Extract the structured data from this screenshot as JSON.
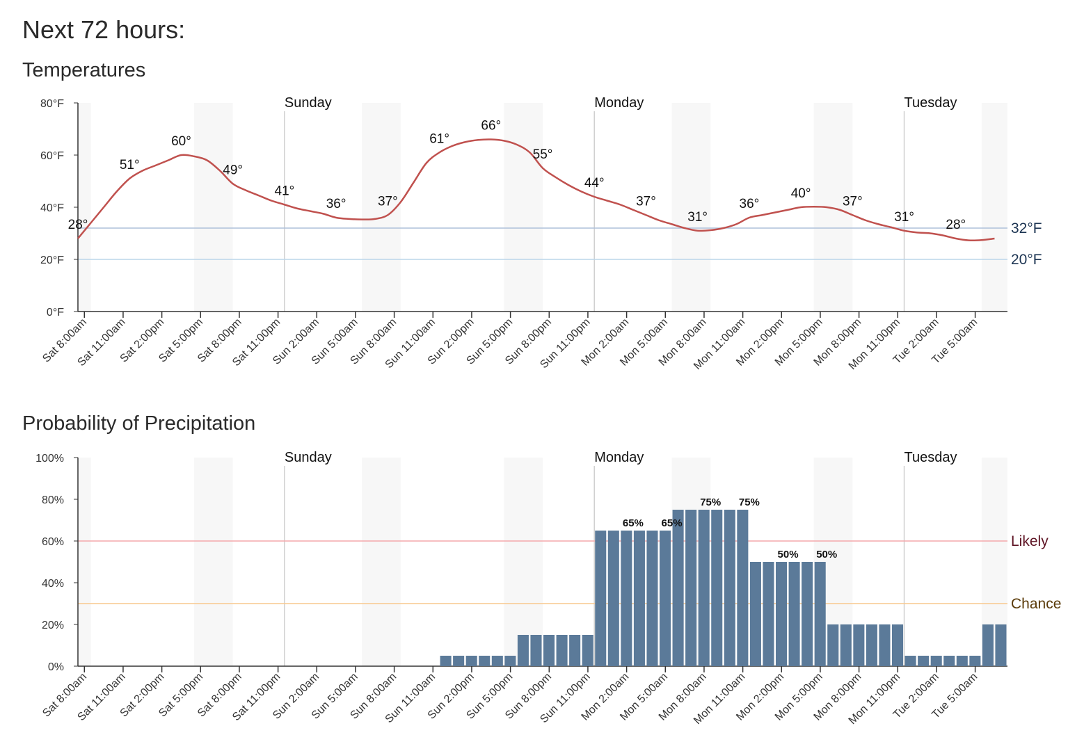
{
  "header": {
    "title": "Next 72 hours:"
  },
  "chart_data": [
    {
      "type": "line",
      "title": "Temperatures",
      "xlim": [
        0,
        72
      ],
      "xticks": [
        {
          "value": 0.5,
          "label": "Sat 8:00am"
        },
        {
          "value": 3.5,
          "label": "Sat 11:00am"
        },
        {
          "value": 6.5,
          "label": "Sat 2:00pm"
        },
        {
          "value": 9.5,
          "label": "Sat 5:00pm"
        },
        {
          "value": 12.5,
          "label": "Sat 8:00pm"
        },
        {
          "value": 15.5,
          "label": "Sat 11:00pm"
        },
        {
          "value": 18.5,
          "label": "Sun 2:00am"
        },
        {
          "value": 21.5,
          "label": "Sun 5:00am"
        },
        {
          "value": 24.5,
          "label": "Sun 8:00am"
        },
        {
          "value": 27.5,
          "label": "Sun 11:00am"
        },
        {
          "value": 30.5,
          "label": "Sun 2:00pm"
        },
        {
          "value": 33.5,
          "label": "Sun 5:00pm"
        },
        {
          "value": 36.5,
          "label": "Sun 8:00pm"
        },
        {
          "value": 39.5,
          "label": "Sun 11:00pm"
        },
        {
          "value": 42.5,
          "label": "Mon 2:00am"
        },
        {
          "value": 45.5,
          "label": "Mon 5:00am"
        },
        {
          "value": 48.5,
          "label": "Mon 8:00am"
        },
        {
          "value": 51.5,
          "label": "Mon 11:00am"
        },
        {
          "value": 54.5,
          "label": "Mon 2:00pm"
        },
        {
          "value": 57.5,
          "label": "Mon 5:00pm"
        },
        {
          "value": 60.5,
          "label": "Mon 8:00pm"
        },
        {
          "value": 63.5,
          "label": "Mon 11:00pm"
        },
        {
          "value": 66.5,
          "label": "Tue 2:00am"
        },
        {
          "value": 69.5,
          "label": "Tue 5:00am"
        }
      ],
      "day_markers": [
        {
          "value": 16,
          "label": "Sunday"
        },
        {
          "value": 40,
          "label": "Monday"
        },
        {
          "value": 64,
          "label": "Tuesday"
        }
      ],
      "ylim": [
        0,
        80
      ],
      "yticks": [
        {
          "value": 0,
          "label": "0°F"
        },
        {
          "value": 20,
          "label": "20°F"
        },
        {
          "value": 40,
          "label": "40°F"
        },
        {
          "value": 60,
          "label": "60°F"
        },
        {
          "value": 80,
          "label": "80°F"
        }
      ],
      "reference_lines": [
        {
          "value": 32,
          "label": "32°F",
          "color": "#aec0da",
          "label_color": "#1d3553"
        },
        {
          "value": 20,
          "label": "20°F",
          "color": "#bcd6ea",
          "label_color": "#1d3553"
        }
      ],
      "series": [
        {
          "color": "#c0514e",
          "values": [
            28,
            34,
            40,
            46,
            51,
            54,
            56,
            58,
            60,
            59.5,
            58,
            54,
            49,
            46.5,
            44.5,
            42.5,
            41,
            39.5,
            38.5,
            37.5,
            36,
            35.5,
            35.3,
            35.5,
            37,
            42,
            49.5,
            57,
            61,
            63.5,
            65,
            65.8,
            66,
            65.5,
            64,
            61,
            55,
            51.5,
            48.5,
            46,
            44,
            42.5,
            41,
            39,
            37,
            35,
            33.5,
            32,
            31,
            31.2,
            32,
            33.5,
            36,
            37,
            38,
            39,
            40,
            40.2,
            40,
            39,
            37,
            35,
            33.5,
            32.3,
            31,
            30.3,
            30,
            29.2,
            28,
            27.3,
            27.4,
            28
          ],
          "value_labels": [
            "28°",
            null,
            null,
            null,
            "51°",
            null,
            null,
            null,
            "60°",
            null,
            null,
            null,
            "49°",
            null,
            null,
            null,
            "41°",
            null,
            null,
            null,
            "36°",
            null,
            null,
            null,
            "37°",
            null,
            null,
            null,
            "61°",
            null,
            null,
            null,
            "66°",
            null,
            null,
            null,
            "55°",
            null,
            null,
            null,
            "44°",
            null,
            null,
            null,
            "37°",
            null,
            null,
            null,
            "31°",
            null,
            null,
            null,
            "36°",
            null,
            null,
            null,
            "40°",
            null,
            null,
            null,
            "37°",
            null,
            null,
            null,
            "31°",
            null,
            null,
            null,
            "28°",
            null,
            null,
            null
          ]
        }
      ]
    },
    {
      "type": "bar",
      "title": "Probability of Precipitation",
      "xlim": [
        0,
        72
      ],
      "xticks": [
        {
          "value": 0.5,
          "label": "Sat 8:00am"
        },
        {
          "value": 3.5,
          "label": "Sat 11:00am"
        },
        {
          "value": 6.5,
          "label": "Sat 2:00pm"
        },
        {
          "value": 9.5,
          "label": "Sat 5:00pm"
        },
        {
          "value": 12.5,
          "label": "Sat 8:00pm"
        },
        {
          "value": 15.5,
          "label": "Sat 11:00pm"
        },
        {
          "value": 18.5,
          "label": "Sun 2:00am"
        },
        {
          "value": 21.5,
          "label": "Sun 5:00am"
        },
        {
          "value": 24.5,
          "label": "Sun 8:00am"
        },
        {
          "value": 27.5,
          "label": "Sun 11:00am"
        },
        {
          "value": 30.5,
          "label": "Sun 2:00pm"
        },
        {
          "value": 33.5,
          "label": "Sun 5:00pm"
        },
        {
          "value": 36.5,
          "label": "Sun 8:00pm"
        },
        {
          "value": 39.5,
          "label": "Sun 11:00pm"
        },
        {
          "value": 42.5,
          "label": "Mon 2:00am"
        },
        {
          "value": 45.5,
          "label": "Mon 5:00am"
        },
        {
          "value": 48.5,
          "label": "Mon 8:00am"
        },
        {
          "value": 51.5,
          "label": "Mon 11:00am"
        },
        {
          "value": 54.5,
          "label": "Mon 2:00pm"
        },
        {
          "value": 57.5,
          "label": "Mon 5:00pm"
        },
        {
          "value": 60.5,
          "label": "Mon 8:00pm"
        },
        {
          "value": 63.5,
          "label": "Mon 11:00pm"
        },
        {
          "value": 66.5,
          "label": "Tue 2:00am"
        },
        {
          "value": 69.5,
          "label": "Tue 5:00am"
        }
      ],
      "day_markers": [
        {
          "value": 16,
          "label": "Sunday"
        },
        {
          "value": 40,
          "label": "Monday"
        },
        {
          "value": 64,
          "label": "Tuesday"
        }
      ],
      "ylim": [
        0,
        100
      ],
      "yticks": [
        {
          "value": 0,
          "label": "0%"
        },
        {
          "value": 20,
          "label": "20%"
        },
        {
          "value": 40,
          "label": "40%"
        },
        {
          "value": 60,
          "label": "60%"
        },
        {
          "value": 80,
          "label": "80%"
        },
        {
          "value": 100,
          "label": "100%"
        }
      ],
      "reference_lines": [
        {
          "value": 60,
          "label": "Likely",
          "color": "#f4a9ab",
          "label_color": "#5e1424"
        },
        {
          "value": 30,
          "label": "Chance",
          "color": "#f9c98e",
          "label_color": "#5a3a08"
        }
      ],
      "color": "#5b7a99",
      "values": [
        0,
        0,
        0,
        0,
        0,
        0,
        0,
        0,
        0,
        0,
        0,
        0,
        0,
        0,
        0,
        0,
        0,
        0,
        0,
        0,
        0,
        0,
        0,
        0,
        0,
        0,
        0,
        0,
        5,
        5,
        5,
        5,
        5,
        5,
        15,
        15,
        15,
        15,
        15,
        15,
        65,
        65,
        65,
        65,
        65,
        65,
        75,
        75,
        75,
        75,
        75,
        75,
        50,
        50,
        50,
        50,
        50,
        50,
        20,
        20,
        20,
        20,
        20,
        20,
        5,
        5,
        5,
        5,
        5,
        5,
        20,
        20
      ],
      "value_labels": [
        null,
        null,
        null,
        null,
        null,
        null,
        null,
        null,
        null,
        null,
        null,
        null,
        null,
        null,
        null,
        null,
        null,
        null,
        null,
        null,
        null,
        null,
        null,
        null,
        null,
        null,
        null,
        null,
        null,
        null,
        null,
        null,
        null,
        null,
        null,
        null,
        null,
        null,
        null,
        null,
        null,
        null,
        "65%",
        null,
        null,
        "65%",
        null,
        null,
        "75%",
        null,
        null,
        "75%",
        null,
        null,
        "50%",
        null,
        null,
        "50%",
        null,
        null,
        null,
        null,
        null,
        null,
        null,
        null,
        null,
        null,
        null,
        null,
        null,
        null
      ]
    }
  ]
}
